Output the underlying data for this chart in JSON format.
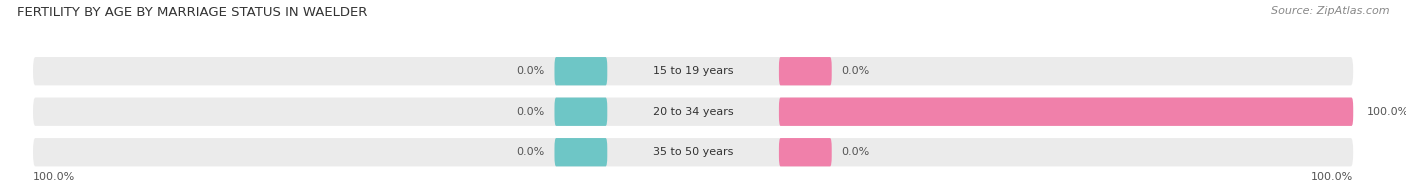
{
  "title": "FERTILITY BY AGE BY MARRIAGE STATUS IN WAELDER",
  "source": "Source: ZipAtlas.com",
  "categories": [
    "15 to 19 years",
    "20 to 34 years",
    "35 to 50 years"
  ],
  "married_values": [
    0.0,
    0.0,
    0.0
  ],
  "unmarried_values": [
    0.0,
    100.0,
    0.0
  ],
  "married_color": "#6ec6c6",
  "unmarried_color": "#f080aa",
  "bar_bg_color": "#ebebeb",
  "title_fontsize": 9.5,
  "source_fontsize": 8,
  "label_fontsize": 8,
  "tick_fontsize": 8,
  "legend_fontsize": 8.5,
  "figsize": [
    14.06,
    1.96
  ],
  "dpi": 100,
  "background_color": "#ffffff",
  "text_color": "#555555",
  "source_color": "#888888"
}
